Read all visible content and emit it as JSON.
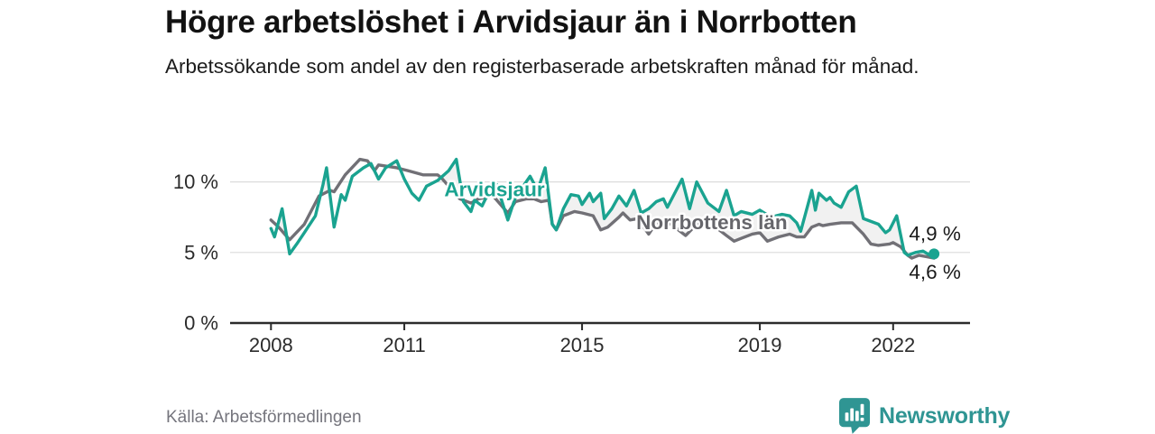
{
  "header": {
    "title": "Högre arbetslöshet i Arvidsjaur än i Norrbotten",
    "subtitle": "Arbetssökande som andel av den registerbaserade arbetskraften månad för månad."
  },
  "footer": {
    "source": "Källa: Arbetsförmedlingen",
    "brand": "Newsworthy",
    "brand_color": "#2f9593",
    "logo_icon": "bar-chart-speech-bubble-icon"
  },
  "chart_data": {
    "type": "line",
    "title": "Högre arbetslöshet i Arvidsjaur än i Norrbotten",
    "subtitle": "Arbetssökande som andel av den registerbaserade arbetskraften månad för månad.",
    "unit": "%",
    "grid": "horizontal-gridlines-at-5-and-10",
    "legend_position": "inline-labels-on-lines",
    "xlim": [
      2007.08,
      2023.73
    ],
    "ylim": [
      0,
      13.3
    ],
    "x_ticks": [
      2008,
      2011,
      2015,
      2019,
      2022
    ],
    "x_tick_labels": [
      "2008",
      "2011",
      "2015",
      "2019",
      "2022"
    ],
    "y_ticks": [
      0,
      5,
      10
    ],
    "y_tick_labels": [
      "0 %",
      "5 %",
      "10 %"
    ],
    "axis_color": "#2b2b2b",
    "gridline_color": "#dcdcdc",
    "between_fill": "#f1f1f1",
    "end_label_color": "#1a1a1a",
    "series": [
      {
        "name": "Norrbottens län",
        "color": "#717076",
        "label_color": "#66666b",
        "label_pos": [
          2017.92,
          7.15
        ],
        "end_label": "4,6 %",
        "end_dot": false,
        "points": [
          [
            2008.0,
            7.3
          ],
          [
            2008.17,
            6.8
          ],
          [
            2008.42,
            5.9
          ],
          [
            2008.75,
            7.0
          ],
          [
            2009.08,
            9.0
          ],
          [
            2009.33,
            9.4
          ],
          [
            2009.42,
            9.3
          ],
          [
            2009.67,
            10.5
          ],
          [
            2010.0,
            11.6
          ],
          [
            2010.17,
            11.5
          ],
          [
            2010.33,
            10.8
          ],
          [
            2010.42,
            11.2
          ],
          [
            2010.83,
            11.0
          ],
          [
            2011.08,
            10.8
          ],
          [
            2011.42,
            10.5
          ],
          [
            2011.75,
            10.5
          ],
          [
            2011.83,
            10.3
          ],
          [
            2012.25,
            8.8
          ],
          [
            2012.5,
            8.5
          ],
          [
            2012.67,
            8.8
          ],
          [
            2013.0,
            9.0
          ],
          [
            2013.33,
            7.8
          ],
          [
            2013.5,
            8.6
          ],
          [
            2013.75,
            8.8
          ],
          [
            2013.92,
            8.8
          ],
          [
            2014.08,
            8.6
          ],
          [
            2014.25,
            8.7
          ],
          [
            2014.33,
            7.0
          ],
          [
            2014.42,
            6.6
          ],
          [
            2014.58,
            7.6
          ],
          [
            2014.83,
            7.9
          ],
          [
            2015.0,
            7.8
          ],
          [
            2015.25,
            7.6
          ],
          [
            2015.42,
            6.6
          ],
          [
            2015.58,
            6.8
          ],
          [
            2015.83,
            7.5
          ],
          [
            2015.92,
            7.8
          ],
          [
            2016.08,
            7.3
          ],
          [
            2016.25,
            7.4
          ],
          [
            2016.5,
            6.3
          ],
          [
            2016.67,
            7.1
          ],
          [
            2016.92,
            7.2
          ],
          [
            2017.33,
            6.2
          ],
          [
            2017.58,
            7.0
          ],
          [
            2017.92,
            7.0
          ],
          [
            2018.25,
            6.2
          ],
          [
            2018.42,
            5.8
          ],
          [
            2018.58,
            6.0
          ],
          [
            2018.83,
            6.3
          ],
          [
            2019.0,
            6.4
          ],
          [
            2019.17,
            5.8
          ],
          [
            2019.42,
            6.1
          ],
          [
            2019.67,
            6.3
          ],
          [
            2019.83,
            6.1
          ],
          [
            2020.0,
            6.1
          ],
          [
            2020.17,
            6.8
          ],
          [
            2020.33,
            7.0
          ],
          [
            2020.42,
            6.9
          ],
          [
            2020.58,
            7.0
          ],
          [
            2020.83,
            7.1
          ],
          [
            2021.08,
            7.1
          ],
          [
            2021.33,
            6.3
          ],
          [
            2021.5,
            5.6
          ],
          [
            2021.67,
            5.5
          ],
          [
            2021.92,
            5.6
          ],
          [
            2022.0,
            5.7
          ],
          [
            2022.17,
            5.4
          ],
          [
            2022.33,
            4.8
          ],
          [
            2022.42,
            4.6
          ],
          [
            2022.58,
            4.8
          ],
          [
            2022.75,
            4.7
          ],
          [
            2022.92,
            4.6
          ]
        ]
      },
      {
        "name": "Arvidsjaur",
        "color": "#1aa390",
        "label_color": "#1aa390",
        "label_pos": [
          2013.03,
          9.5
        ],
        "end_label": "4,9 %",
        "end_dot": true,
        "points": [
          [
            2008.0,
            6.7
          ],
          [
            2008.08,
            6.1
          ],
          [
            2008.25,
            8.1
          ],
          [
            2008.42,
            4.9
          ],
          [
            2008.58,
            5.6
          ],
          [
            2008.75,
            6.4
          ],
          [
            2009.0,
            7.6
          ],
          [
            2009.17,
            9.8
          ],
          [
            2009.25,
            11.0
          ],
          [
            2009.42,
            6.8
          ],
          [
            2009.58,
            9.1
          ],
          [
            2009.67,
            8.7
          ],
          [
            2009.83,
            10.4
          ],
          [
            2010.08,
            11.0
          ],
          [
            2010.25,
            11.3
          ],
          [
            2010.42,
            10.2
          ],
          [
            2010.58,
            11.0
          ],
          [
            2010.83,
            11.5
          ],
          [
            2011.0,
            10.2
          ],
          [
            2011.17,
            9.2
          ],
          [
            2011.33,
            8.7
          ],
          [
            2011.5,
            9.7
          ],
          [
            2011.75,
            10.1
          ],
          [
            2012.0,
            10.8
          ],
          [
            2012.17,
            11.6
          ],
          [
            2012.33,
            8.6
          ],
          [
            2012.5,
            7.9
          ],
          [
            2012.58,
            8.7
          ],
          [
            2012.75,
            8.3
          ],
          [
            2012.92,
            9.4
          ],
          [
            2013.08,
            9.8
          ],
          [
            2013.33,
            7.3
          ],
          [
            2013.5,
            8.9
          ],
          [
            2013.83,
            10.4
          ],
          [
            2014.0,
            9.4
          ],
          [
            2014.17,
            11.0
          ],
          [
            2014.33,
            7.0
          ],
          [
            2014.42,
            6.6
          ],
          [
            2014.58,
            8.1
          ],
          [
            2014.75,
            9.1
          ],
          [
            2014.92,
            9.0
          ],
          [
            2015.0,
            8.4
          ],
          [
            2015.17,
            9.2
          ],
          [
            2015.25,
            8.6
          ],
          [
            2015.42,
            9.2
          ],
          [
            2015.5,
            7.4
          ],
          [
            2015.67,
            8.1
          ],
          [
            2015.83,
            9.0
          ],
          [
            2016.0,
            8.3
          ],
          [
            2016.17,
            9.4
          ],
          [
            2016.33,
            7.8
          ],
          [
            2016.5,
            8.1
          ],
          [
            2016.67,
            8.6
          ],
          [
            2016.83,
            8.8
          ],
          [
            2016.92,
            8.2
          ],
          [
            2017.25,
            10.2
          ],
          [
            2017.42,
            8.1
          ],
          [
            2017.58,
            10.0
          ],
          [
            2017.83,
            8.5
          ],
          [
            2018.08,
            7.9
          ],
          [
            2018.25,
            9.4
          ],
          [
            2018.42,
            7.6
          ],
          [
            2018.58,
            7.9
          ],
          [
            2018.83,
            7.7
          ],
          [
            2019.0,
            8.0
          ],
          [
            2019.25,
            7.5
          ],
          [
            2019.5,
            7.7
          ],
          [
            2019.67,
            7.6
          ],
          [
            2019.83,
            7.1
          ],
          [
            2019.92,
            6.5
          ],
          [
            2020.17,
            9.4
          ],
          [
            2020.25,
            8.0
          ],
          [
            2020.33,
            9.2
          ],
          [
            2020.5,
            8.7
          ],
          [
            2020.58,
            8.9
          ],
          [
            2020.67,
            8.5
          ],
          [
            2020.83,
            8.2
          ],
          [
            2021.0,
            9.3
          ],
          [
            2021.17,
            9.7
          ],
          [
            2021.33,
            7.4
          ],
          [
            2021.5,
            7.2
          ],
          [
            2021.67,
            7.0
          ],
          [
            2021.83,
            6.4
          ],
          [
            2021.92,
            6.6
          ],
          [
            2022.08,
            7.6
          ],
          [
            2022.25,
            5.0
          ],
          [
            2022.33,
            4.8
          ],
          [
            2022.5,
            5.0
          ],
          [
            2022.67,
            5.1
          ],
          [
            2022.83,
            4.8
          ],
          [
            2022.92,
            4.9
          ]
        ]
      }
    ]
  }
}
